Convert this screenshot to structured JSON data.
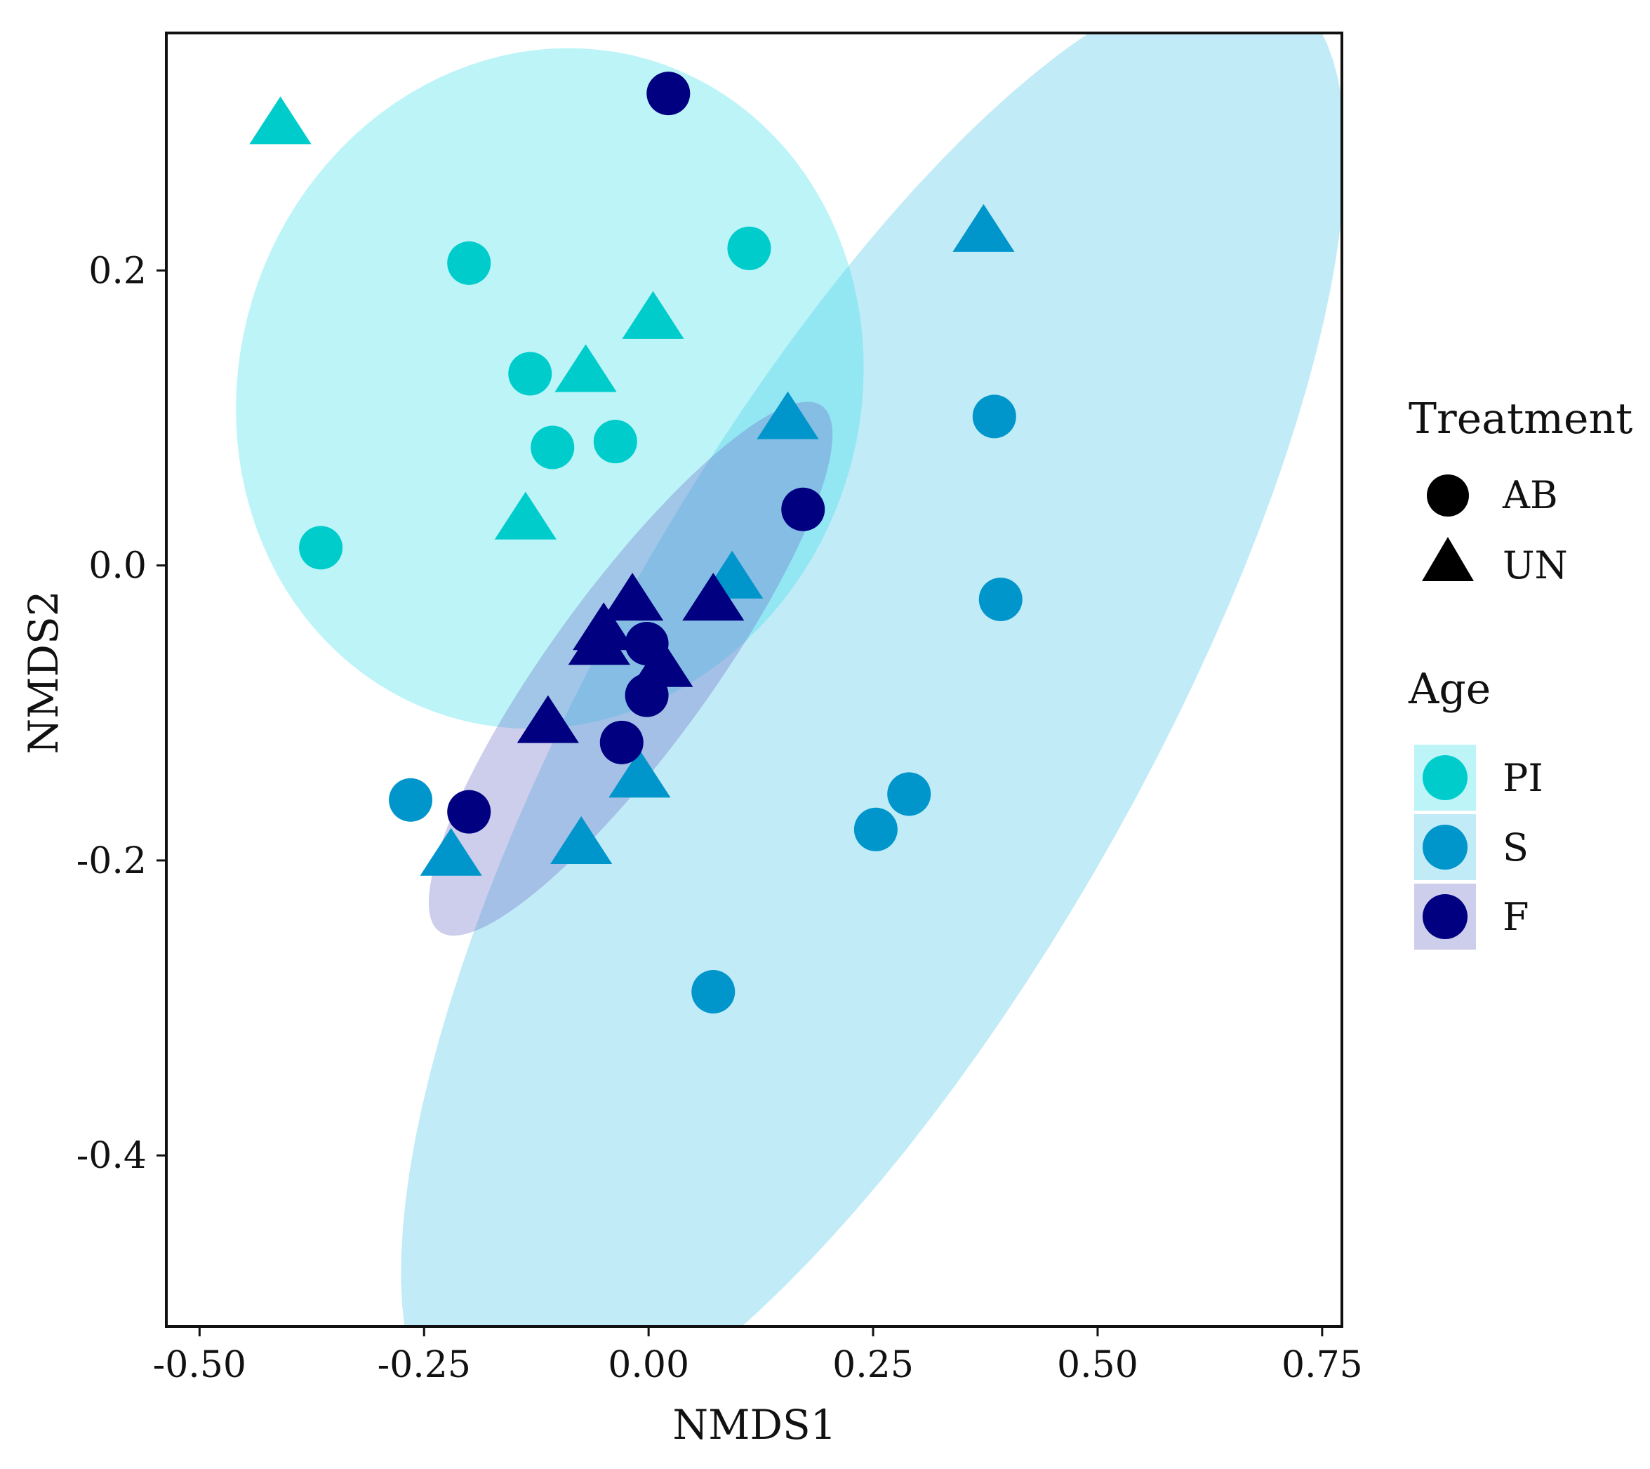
{
  "chart_data": {
    "type": "scatter",
    "xlabel": "NMDS1",
    "ylabel": "NMDS2",
    "xlim": [
      -0.537,
      0.772
    ],
    "ylim": [
      -0.516,
      0.361
    ],
    "x_ticks": [
      {
        "value": -0.5,
        "label": "-0.50"
      },
      {
        "value": -0.25,
        "label": "-0.25"
      },
      {
        "value": 0.0,
        "label": "0.00"
      },
      {
        "value": 0.25,
        "label": "0.25"
      },
      {
        "value": 0.5,
        "label": "0.50"
      },
      {
        "value": 0.75,
        "label": "0.75"
      }
    ],
    "y_ticks": [
      {
        "value": 0.2,
        "label": "0.2"
      },
      {
        "value": 0.0,
        "label": "0.0"
      },
      {
        "value": -0.2,
        "label": "-0.2"
      },
      {
        "value": -0.4,
        "label": "-0.4"
      }
    ],
    "groups": [
      {
        "name": "PI",
        "color": "#00cccc",
        "fill_opacity": 0.27
      },
      {
        "name": "S",
        "color": "#0096cc",
        "fill_opacity": 0.0
      },
      {
        "name": "F",
        "color": "#000080",
        "fill_opacity": 0.0
      }
    ],
    "ellipses": [
      {
        "group": "S",
        "color": "#5bcbe9",
        "opacity": 0.38,
        "cx": 0.25,
        "cy": -0.1,
        "rx": 0.68,
        "ry": 0.25,
        "angle_deg": 43
      },
      {
        "group": "PI",
        "color": "#3fe0ea",
        "opacity": 0.35,
        "cx": -0.11,
        "cy": 0.12,
        "rx": 0.35,
        "ry": 0.23,
        "angle_deg": 4
      },
      {
        "group": "F",
        "color": "#6f6fc8",
        "opacity": 0.35,
        "cx": -0.02,
        "cy": -0.07,
        "rx": 0.28,
        "ry": 0.07,
        "angle_deg": 38
      }
    ],
    "points": [
      {
        "group": "PI",
        "shape": "circle",
        "x": -0.2,
        "y": 0.205
      },
      {
        "group": "PI",
        "shape": "circle",
        "x": 0.112,
        "y": 0.215
      },
      {
        "group": "PI",
        "shape": "circle",
        "x": -0.132,
        "y": 0.13
      },
      {
        "group": "PI",
        "shape": "circle",
        "x": -0.107,
        "y": 0.08
      },
      {
        "group": "PI",
        "shape": "circle",
        "x": -0.037,
        "y": 0.084
      },
      {
        "group": "PI",
        "shape": "circle",
        "x": -0.365,
        "y": 0.012
      },
      {
        "group": "PI",
        "shape": "triangle",
        "x": -0.41,
        "y": 0.298
      },
      {
        "group": "PI",
        "shape": "triangle",
        "x": 0.005,
        "y": 0.166
      },
      {
        "group": "PI",
        "shape": "triangle",
        "x": -0.07,
        "y": 0.13
      },
      {
        "group": "PI",
        "shape": "triangle",
        "x": -0.137,
        "y": 0.03
      },
      {
        "group": "S",
        "shape": "circle",
        "x": 0.385,
        "y": 0.101
      },
      {
        "group": "S",
        "shape": "circle",
        "x": 0.392,
        "y": -0.023
      },
      {
        "group": "S",
        "shape": "circle",
        "x": -0.265,
        "y": -0.159
      },
      {
        "group": "S",
        "shape": "circle",
        "x": 0.29,
        "y": -0.155
      },
      {
        "group": "S",
        "shape": "circle",
        "x": 0.253,
        "y": -0.179
      },
      {
        "group": "S",
        "shape": "circle",
        "x": 0.072,
        "y": -0.289
      },
      {
        "group": "S",
        "shape": "triangle",
        "x": 0.373,
        "y": 0.225
      },
      {
        "group": "S",
        "shape": "triangle",
        "x": 0.155,
        "y": 0.098
      },
      {
        "group": "S",
        "shape": "triangle",
        "x": 0.093,
        "y": -0.01
      },
      {
        "group": "S",
        "shape": "triangle",
        "x": -0.01,
        "y": -0.145
      },
      {
        "group": "S",
        "shape": "triangle",
        "x": -0.075,
        "y": -0.19
      },
      {
        "group": "S",
        "shape": "triangle",
        "x": -0.22,
        "y": -0.198
      },
      {
        "group": "F",
        "shape": "circle",
        "x": 0.022,
        "y": 0.32
      },
      {
        "group": "F",
        "shape": "circle",
        "x": 0.172,
        "y": 0.038
      },
      {
        "group": "F",
        "shape": "circle",
        "x": -0.002,
        "y": -0.053
      },
      {
        "group": "F",
        "shape": "circle",
        "x": -0.002,
        "y": -0.088
      },
      {
        "group": "F",
        "shape": "circle",
        "x": -0.03,
        "y": -0.12
      },
      {
        "group": "F",
        "shape": "circle",
        "x": -0.2,
        "y": -0.167
      },
      {
        "group": "F",
        "shape": "triangle",
        "x": -0.018,
        "y": -0.025
      },
      {
        "group": "F",
        "shape": "triangle",
        "x": -0.05,
        "y": -0.045
      },
      {
        "group": "F",
        "shape": "triangle",
        "x": 0.072,
        "y": -0.025
      },
      {
        "group": "F",
        "shape": "triangle",
        "x": -0.055,
        "y": -0.055
      },
      {
        "group": "F",
        "shape": "triangle",
        "x": 0.015,
        "y": -0.07
      },
      {
        "group": "F",
        "shape": "triangle",
        "x": -0.112,
        "y": -0.108
      }
    ],
    "legend": {
      "position": "right",
      "treatment": {
        "title": "Treatment",
        "items": [
          {
            "label": "AB",
            "shape": "circle"
          },
          {
            "label": "UN",
            "shape": "triangle"
          }
        ]
      },
      "age": {
        "title": "Age",
        "items": [
          {
            "label": "PI",
            "group": "PI"
          },
          {
            "label": "S",
            "group": "S"
          },
          {
            "label": "F",
            "group": "F"
          }
        ]
      }
    }
  }
}
